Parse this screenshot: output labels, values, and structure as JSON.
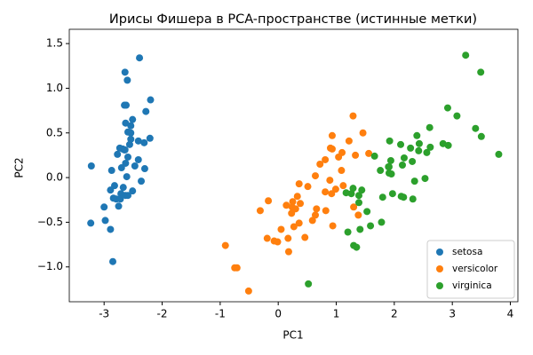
{
  "chart_data": {
    "type": "scatter",
    "title": "Ирисы Фишера в PCA-пространстве (истинные метки)",
    "x_label": "PC1",
    "y_label": "PC2",
    "xlim": [
      -3.6,
      4.13
    ],
    "ylim": [
      -1.39,
      1.66
    ],
    "xticks": [
      -3,
      -2,
      -1,
      0,
      1,
      2,
      3,
      4
    ],
    "yticks": [
      {
        "value": -1,
        "label": "−1.0"
      },
      {
        "value": -0.5,
        "label": "−0.5"
      },
      {
        "value": 0,
        "label": "0.0"
      },
      {
        "value": 0.5,
        "label": "0.5"
      },
      {
        "value": 1,
        "label": "1.0"
      },
      {
        "value": 1.5,
        "label": "1.5"
      }
    ],
    "legend_position": "lower right",
    "series": [
      {
        "name": "setosa",
        "color": "#1f77b4",
        "x": [
          -2.68,
          -2.71,
          -2.89,
          -2.75,
          -2.73,
          -2.28,
          -2.82,
          -2.63,
          -2.89,
          -2.67,
          -2.51,
          -2.61,
          -2.79,
          -3.23,
          -2.64,
          -2.39,
          -2.62,
          -2.65,
          -2.2,
          -2.59,
          -2.31,
          -2.54,
          -3.22,
          -2.3,
          -2.36,
          -2.51,
          -2.47,
          -2.56,
          -2.64,
          -2.63,
          -2.59,
          -2.41,
          -2.65,
          -2.6,
          -2.87,
          -2.63,
          -2.98,
          -2.59,
          -2.77,
          -2.85,
          -3.0,
          -2.41,
          -2.21,
          -2.72,
          -2.54,
          -2.84,
          -2.54,
          -2.7
        ],
        "y": [
          0.32,
          -0.18,
          -0.14,
          -0.32,
          0.33,
          0.74,
          -0.09,
          0.16,
          -0.58,
          -0.11,
          0.65,
          0.01,
          -0.24,
          -0.51,
          1.18,
          1.34,
          0.81,
          0.31,
          0.87,
          0.51,
          0.39,
          0.43,
          0.13,
          0.1,
          -0.04,
          -0.15,
          0.13,
          0.37,
          0.31,
          -0.2,
          -0.2,
          0.41,
          0.81,
          1.09,
          0.08,
          0.61,
          -0.48,
          0.23,
          0.26,
          -0.94,
          -0.33,
          0.2,
          0.44,
          -0.24,
          0.5,
          -0.23,
          0.58,
          0.11
        ]
      },
      {
        "name": "versicolor",
        "color": "#ff7f0e",
        "x": [
          1.29,
          0.93,
          1.46,
          0.18,
          1.09,
          0.64,
          1.1,
          -0.75,
          1.04,
          -0.01,
          -0.51,
          0.51,
          0.27,
          0.99,
          -0.17,
          0.93,
          0.66,
          0.24,
          0.94,
          0.05,
          1.12,
          0.36,
          1.3,
          0.92,
          0.72,
          0.9,
          1.33,
          1.56,
          0.81,
          -0.31,
          -0.07,
          -0.19,
          0.14,
          1.38,
          0.59,
          0.81,
          1.22,
          0.82,
          0.25,
          0.17,
          0.46,
          0.89,
          0.23,
          -0.71,
          0.36,
          0.33,
          0.38,
          0.64,
          -0.91,
          0.3
        ],
        "y": [
          0.69,
          0.32,
          0.5,
          -0.83,
          0.08,
          -0.42,
          0.28,
          -1.01,
          0.23,
          -0.72,
          -1.27,
          -0.1,
          -0.55,
          -0.13,
          -0.26,
          0.47,
          -0.35,
          -0.33,
          -0.54,
          -0.58,
          -0.09,
          -0.07,
          -0.33,
          -0.18,
          0.15,
          0.33,
          0.25,
          0.27,
          -0.16,
          -0.37,
          -0.71,
          -0.68,
          -0.31,
          -0.42,
          -0.48,
          0.2,
          0.41,
          -0.37,
          -0.27,
          -0.68,
          -0.67,
          -0.03,
          -0.4,
          -1.01,
          -0.51,
          -0.21,
          -0.29,
          0.02,
          -0.76,
          -0.35
        ]
      },
      {
        "name": "virginica",
        "color": "#2ca02c",
        "x": [
          2.53,
          1.41,
          2.62,
          1.97,
          2.35,
          3.4,
          0.52,
          2.93,
          2.32,
          2.92,
          1.66,
          1.8,
          2.17,
          1.35,
          1.59,
          1.91,
          1.95,
          3.49,
          3.8,
          1.3,
          2.43,
          1.2,
          3.5,
          1.39,
          2.28,
          2.61,
          1.26,
          1.29,
          2.12,
          2.39,
          2.84,
          3.23,
          2.16,
          1.44,
          1.78,
          3.08,
          2.14,
          1.91,
          1.17,
          2.11,
          2.31,
          1.92,
          2.56,
          2.42,
          1.94,
          1.53,
          1.76,
          1.9,
          1.39
        ],
        "y": [
          -0.01,
          -0.58,
          0.34,
          -0.18,
          -0.04,
          0.55,
          -1.19,
          0.36,
          -0.24,
          0.78,
          0.24,
          -0.22,
          0.22,
          -0.78,
          -0.54,
          0.12,
          0.04,
          1.18,
          0.26,
          -0.76,
          0.38,
          -0.61,
          0.46,
          -0.2,
          0.33,
          0.56,
          -0.18,
          -0.12,
          -0.21,
          0.47,
          0.38,
          1.37,
          -0.22,
          -0.14,
          -0.5,
          0.69,
          0.14,
          0.05,
          -0.17,
          0.37,
          0.18,
          0.41,
          0.28,
          0.3,
          0.19,
          -0.38,
          0.08,
          0.12,
          -0.28
        ]
      }
    ]
  }
}
